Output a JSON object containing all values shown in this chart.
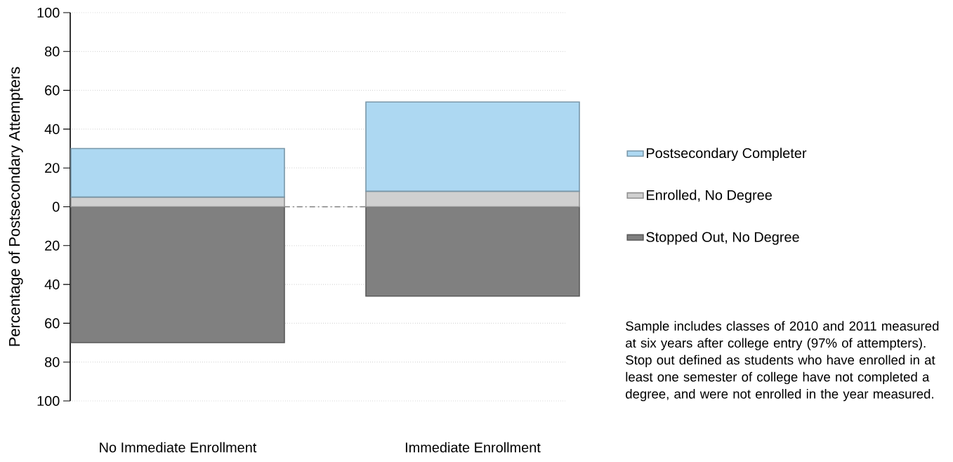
{
  "chart_data": {
    "type": "bar",
    "stacked": true,
    "ylabel": "Percentage of Postsecondary Attempters",
    "categories": [
      "No Immediate Enrollment",
      "Immediate Enrollment"
    ],
    "series": [
      {
        "name": "Stopped Out, No Degree",
        "color": "#808080",
        "values": [
          -70,
          -46
        ]
      },
      {
        "name": "Enrolled, No Degree",
        "color": "#d0d0d0",
        "values": [
          5,
          8
        ]
      },
      {
        "name": "Postsecondary Completer",
        "color": "#add8f2",
        "values": [
          25,
          46
        ]
      }
    ],
    "ylim": [
      -100,
      100
    ],
    "yticks": [
      {
        "value": -100,
        "label": "100"
      },
      {
        "value": -80,
        "label": "80"
      },
      {
        "value": -60,
        "label": "60"
      },
      {
        "value": -40,
        "label": "40"
      },
      {
        "value": -20,
        "label": "20"
      },
      0,
      20,
      40,
      60,
      80,
      100
    ],
    "ref_lines": [
      {
        "axis": "y",
        "value": 0,
        "color": "#808080"
      }
    ],
    "grid": "y",
    "legend": "right",
    "annotations": [
      "Sample includes classes of 2010 and 2011 measured at six years after college entry (97% of attempters).",
      "Stop out defined as students who have enrolled in at least one semester of college have not completed a degree, and were not enrolled in the year measured."
    ]
  }
}
